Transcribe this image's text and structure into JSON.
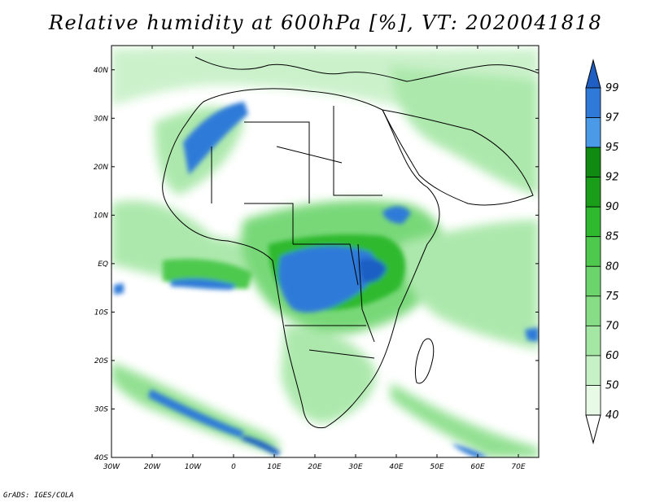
{
  "title": "Relative humidity at 600hPa [%], VT: 2020041818",
  "footer": "GrADS: IGES/COLA",
  "map": {
    "lon_range": [
      -30,
      75
    ],
    "lat_range": [
      -40,
      45
    ],
    "lon_ticks": [
      "30W",
      "20W",
      "10W",
      "0",
      "10E",
      "20E",
      "30E",
      "40E",
      "50E",
      "60E",
      "70E"
    ],
    "lat_ticks": [
      "40N",
      "30N",
      "20N",
      "10N",
      "EQ",
      "10S",
      "20S",
      "30S",
      "40S"
    ]
  },
  "colorbar": {
    "levels": [
      "40",
      "50",
      "60",
      "70",
      "75",
      "80",
      "85",
      "90",
      "92",
      "95",
      "97",
      "99"
    ],
    "colors": [
      "#ffffff",
      "#e6fae6",
      "#c6f0c6",
      "#a4e6a4",
      "#86dd86",
      "#6bd46b",
      "#4ec94e",
      "#2eb92e",
      "#1a9e1a",
      "#118a11",
      "#4a9ae8",
      "#2f7ad9",
      "#1f5fc4"
    ],
    "palette": {
      "light_green": "#c6f0c6",
      "mid_green": "#6bd46b",
      "dark_green": "#1a9e1a",
      "blue": "#2f7ad9",
      "deep_blue": "#1f5fc4"
    }
  }
}
